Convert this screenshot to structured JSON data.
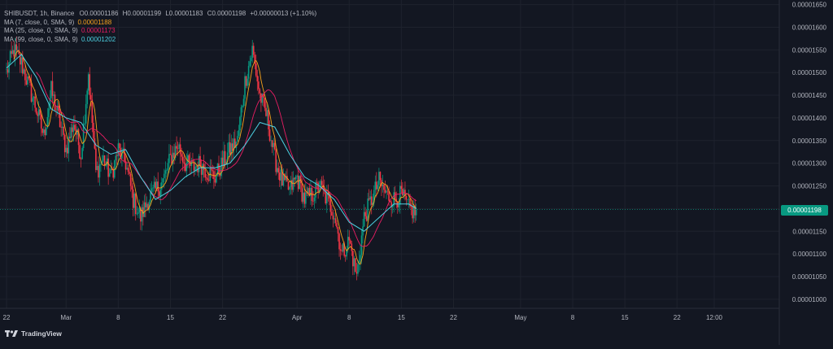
{
  "legend": {
    "symbol_line": "SHIBUSDT, 1h, Binance",
    "ohlc": [
      {
        "label": "O",
        "value": "0.00001186"
      },
      {
        "label": "H",
        "value": "0.00001199"
      },
      {
        "label": "L",
        "value": "0.00001183"
      },
      {
        "label": "C",
        "value": "0.00001198"
      }
    ],
    "change": "+0.00000013 (+1.10%)",
    "ma": [
      {
        "label": "MA (7, close, 0, SMA, 9)",
        "value": "0.00001188",
        "color": "#f7a21b"
      },
      {
        "label": "MA (25, close, 0, SMA, 9)",
        "value": "0.00001173",
        "color": "#e91e63"
      },
      {
        "label": "MA (99, close, 0, SMA, 9)",
        "value": "0.00001202",
        "color": "#4dd0e1"
      }
    ]
  },
  "last_price": "0.00001198",
  "brand": "TradingView",
  "colors": {
    "background": "#131722",
    "grid": "#1e222d",
    "up": "#089981",
    "down": "#f23645",
    "text": "#b2b5be",
    "ma7": "#f7a21b",
    "ma25": "#e91e63",
    "ma99": "#4dd0e1"
  },
  "chart_data": {
    "type": "candlestick",
    "title": "SHIBUSDT, 1h, Binance",
    "xlabel": "",
    "ylabel": "",
    "ylim": [
      9.8e-06,
      1.66e-05
    ],
    "grid": true,
    "y_ticks": [
      "0.00001650",
      "0.00001600",
      "0.00001550",
      "0.00001500",
      "0.00001450",
      "0.00001400",
      "0.00001350",
      "0.00001300",
      "0.00001250",
      "0.00001200",
      "0.00001150",
      "0.00001100",
      "0.00001050",
      "0.00001000"
    ],
    "x_ticks": [
      "22",
      "Mar",
      "8",
      "15",
      "22",
      "Apr",
      "8",
      "15",
      "22",
      "May",
      "8",
      "15",
      "22",
      "12:00"
    ],
    "x_range_days": [
      "2024-02-22",
      "2024-05-27"
    ],
    "last_bar_date": "2024-04-17",
    "price_path": [
      [
        "2024-02-22",
        1.5e-05
      ],
      [
        "2024-02-23",
        1.55e-05
      ],
      [
        "2024-02-24",
        1.52e-05
      ],
      [
        "2024-02-26",
        1.42e-05
      ],
      [
        "2024-02-27",
        1.36e-05
      ],
      [
        "2024-02-28",
        1.46e-05
      ],
      [
        "2024-02-29",
        1.4e-05
      ],
      [
        "2024-03-01",
        1.33e-05
      ],
      [
        "2024-03-02",
        1.39e-05
      ],
      [
        "2024-03-03",
        1.32e-05
      ],
      [
        "2024-03-04",
        1.5e-05
      ],
      [
        "2024-03-05",
        1.28e-05
      ],
      [
        "2024-03-06",
        1.31e-05
      ],
      [
        "2024-03-07",
        1.27e-05
      ],
      [
        "2024-03-08",
        1.33e-05
      ],
      [
        "2024-03-09",
        1.3e-05
      ],
      [
        "2024-03-10",
        1.22e-05
      ],
      [
        "2024-03-11",
        1.18e-05
      ],
      [
        "2024-03-12",
        1.22e-05
      ],
      [
        "2024-03-13",
        1.24e-05
      ],
      [
        "2024-03-14",
        1.26e-05
      ],
      [
        "2024-03-15",
        1.31e-05
      ],
      [
        "2024-03-16",
        1.34e-05
      ],
      [
        "2024-03-17",
        1.3e-05
      ],
      [
        "2024-03-18",
        1.29e-05
      ],
      [
        "2024-03-19",
        1.3e-05
      ],
      [
        "2024-03-20",
        1.28e-05
      ],
      [
        "2024-03-21",
        1.27e-05
      ],
      [
        "2024-03-22",
        1.3e-05
      ],
      [
        "2024-03-23",
        1.33e-05
      ],
      [
        "2024-03-24",
        1.35e-05
      ],
      [
        "2024-03-25",
        1.48e-05
      ],
      [
        "2024-03-26",
        1.55e-05
      ],
      [
        "2024-03-27",
        1.45e-05
      ],
      [
        "2024-03-28",
        1.4e-05
      ],
      [
        "2024-03-29",
        1.31e-05
      ],
      [
        "2024-03-30",
        1.26e-05
      ],
      [
        "2024-03-31",
        1.24e-05
      ],
      [
        "2024-04-01",
        1.27e-05
      ],
      [
        "2024-04-02",
        1.22e-05
      ],
      [
        "2024-04-03",
        1.23e-05
      ],
      [
        "2024-04-04",
        1.25e-05
      ],
      [
        "2024-04-05",
        1.22e-05
      ],
      [
        "2024-04-06",
        1.19e-05
      ],
      [
        "2024-04-07",
        1.1e-05
      ],
      [
        "2024-04-08",
        1.13e-05
      ],
      [
        "2024-04-09",
        1.05e-05
      ],
      [
        "2024-04-10",
        1.18e-05
      ],
      [
        "2024-04-11",
        1.22e-05
      ],
      [
        "2024-04-12",
        1.26e-05
      ],
      [
        "2024-04-13",
        1.23e-05
      ],
      [
        "2024-04-14",
        1.22e-05
      ],
      [
        "2024-04-15",
        1.23e-05
      ],
      [
        "2024-04-16",
        1.2e-05
      ],
      [
        "2024-04-17",
        1.19e-05
      ]
    ],
    "series": [
      {
        "name": "MA (99, close, 0, SMA, 9)",
        "points": [
          [
            "2024-02-22",
            1.51e-05
          ],
          [
            "2024-02-24",
            1.54e-05
          ],
          [
            "2024-02-26",
            1.49e-05
          ],
          [
            "2024-02-28",
            1.42e-05
          ],
          [
            "2024-03-01",
            1.4e-05
          ],
          [
            "2024-03-03",
            1.39e-05
          ],
          [
            "2024-03-05",
            1.34e-05
          ],
          [
            "2024-03-07",
            1.32e-05
          ],
          [
            "2024-03-09",
            1.33e-05
          ],
          [
            "2024-03-11",
            1.27e-05
          ],
          [
            "2024-03-13",
            1.22e-05
          ],
          [
            "2024-03-15",
            1.24e-05
          ],
          [
            "2024-03-17",
            1.27e-05
          ],
          [
            "2024-03-19",
            1.29e-05
          ],
          [
            "2024-03-21",
            1.29e-05
          ],
          [
            "2024-03-23",
            1.3e-05
          ],
          [
            "2024-03-25",
            1.34e-05
          ],
          [
            "2024-03-27",
            1.39e-05
          ],
          [
            "2024-03-29",
            1.38e-05
          ],
          [
            "2024-03-31",
            1.32e-05
          ],
          [
            "2024-04-02",
            1.27e-05
          ],
          [
            "2024-04-04",
            1.25e-05
          ],
          [
            "2024-04-06",
            1.22e-05
          ],
          [
            "2024-04-08",
            1.17e-05
          ],
          [
            "2024-04-10",
            1.15e-05
          ],
          [
            "2024-04-12",
            1.18e-05
          ],
          [
            "2024-04-14",
            1.21e-05
          ],
          [
            "2024-04-16",
            1.21e-05
          ],
          [
            "2024-04-17",
            1.2e-05
          ]
        ]
      }
    ]
  }
}
